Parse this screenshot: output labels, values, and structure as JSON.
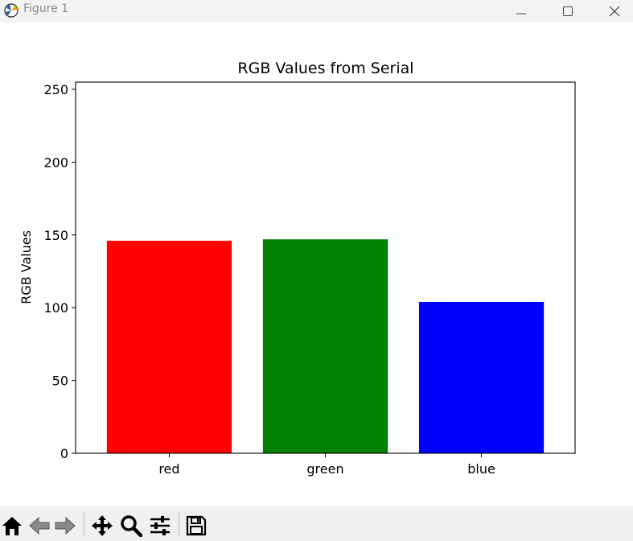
{
  "window": {
    "title": "Figure 1"
  },
  "toolbar": {
    "tools": [
      {
        "name": "home-icon"
      },
      {
        "name": "back-arrow-icon"
      },
      {
        "name": "forward-arrow-icon"
      },
      {
        "name": "pan-icon"
      },
      {
        "name": "zoom-icon"
      },
      {
        "name": "configure-subplots-icon"
      },
      {
        "name": "save-icon"
      }
    ]
  },
  "chart_data": {
    "type": "bar",
    "title": "RGB Values from Serial",
    "xlabel": "",
    "ylabel": "RGB Values",
    "categories": [
      "red",
      "green",
      "blue"
    ],
    "values": [
      146,
      147,
      104
    ],
    "colors": [
      "#ff0000",
      "#008000",
      "#0000ff"
    ],
    "ylim": [
      0,
      255
    ],
    "yticks": [
      0,
      50,
      100,
      150,
      200,
      250
    ],
    "grid": false
  }
}
